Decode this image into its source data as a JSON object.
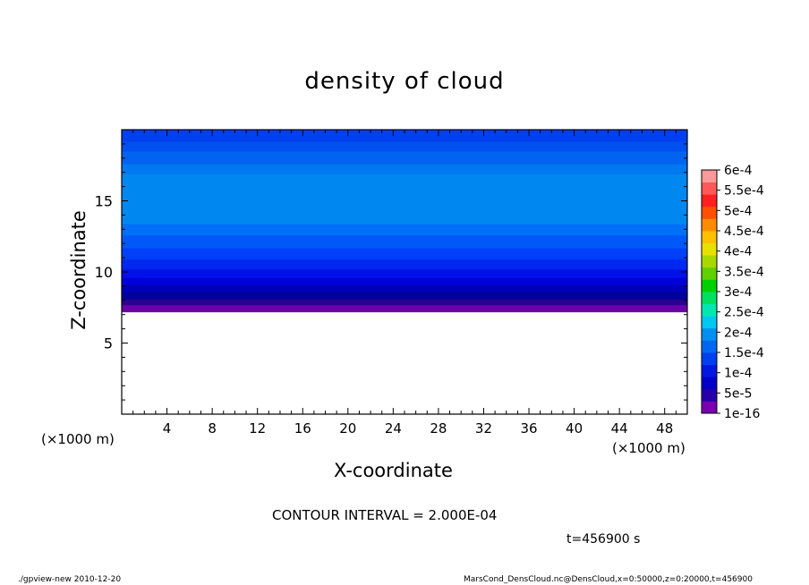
{
  "chart_data": {
    "type": "heatmap",
    "title": "density of cloud",
    "xlabel": "X-coordinate",
    "ylabel": "Z-coordinate",
    "x_unit_left": "(×1000 m)",
    "x_unit_right": "(×1000 m)",
    "xlim": [
      0,
      50
    ],
    "ylim": [
      0,
      20
    ],
    "x_ticks": [
      4,
      8,
      12,
      16,
      20,
      24,
      28,
      32,
      36,
      40,
      44,
      48
    ],
    "x_tick_labels": [
      "4",
      "8",
      "12",
      "16",
      "20",
      "24",
      "28",
      "32",
      "36",
      "40",
      "44",
      "48"
    ],
    "y_ticks": [
      5,
      10,
      15
    ],
    "y_tick_labels": [
      "5",
      "10",
      "15"
    ],
    "x_minor_step": 1,
    "y_minor_step": 1,
    "colorbar": {
      "labels": [
        "1e-16",
        "5e-5",
        "1e-4",
        "1.5e-4",
        "2e-4",
        "2.5e-4",
        "3e-4",
        "3.5e-4",
        "4e-4",
        "4.5e-4",
        "5e-4",
        "5.5e-4",
        "6e-4"
      ],
      "colors": [
        "#7a00b0",
        "#2600a8",
        "#0000c8",
        "#0018e0",
        "#0040f0",
        "#0068f0",
        "#0090f0",
        "#00c8f0",
        "#00e8b0",
        "#00e060",
        "#00d000",
        "#60d000",
        "#a8d800",
        "#e8e000",
        "#ffc000",
        "#ff8c00",
        "#ff5000",
        "#ff2020",
        "#ff5858",
        "#ff9898"
      ],
      "placement": "right"
    },
    "bands": [
      {
        "z0": 7.2,
        "z1": 7.7,
        "color": "#6a00a8"
      },
      {
        "z0": 7.7,
        "z1": 8.1,
        "color": "#2a0090"
      },
      {
        "z0": 8.1,
        "z1": 8.6,
        "color": "#00009a"
      },
      {
        "z0": 8.6,
        "z1": 9.1,
        "color": "#0000b8"
      },
      {
        "z0": 9.1,
        "z1": 9.6,
        "color": "#0000d8"
      },
      {
        "z0": 9.6,
        "z1": 10.2,
        "color": "#0010e8"
      },
      {
        "z0": 10.2,
        "z1": 10.9,
        "color": "#0028f0"
      },
      {
        "z0": 10.9,
        "z1": 11.7,
        "color": "#0040f8"
      },
      {
        "z0": 11.7,
        "z1": 12.6,
        "color": "#0058f8"
      },
      {
        "z0": 12.6,
        "z1": 13.4,
        "color": "#0070f8"
      },
      {
        "z0": 13.4,
        "z1": 16.9,
        "color": "#0088f0"
      },
      {
        "z0": 16.9,
        "z1": 17.6,
        "color": "#0078f0"
      },
      {
        "z0": 17.6,
        "z1": 18.5,
        "color": "#0064f0"
      },
      {
        "z0": 18.5,
        "z1": 19.2,
        "color": "#0050f0"
      },
      {
        "z0": 19.2,
        "z1": 20.0,
        "color": "#0040f0"
      }
    ]
  },
  "contour_interval": "CONTOUR INTERVAL = 2.000E-04",
  "time_label": "t=456900 s",
  "footer_left": "./gpview-new   2010-12-20",
  "footer_right": "MarsCond_DensCloud.nc@DensCloud,x=0:50000,z=0:20000,t=456900"
}
